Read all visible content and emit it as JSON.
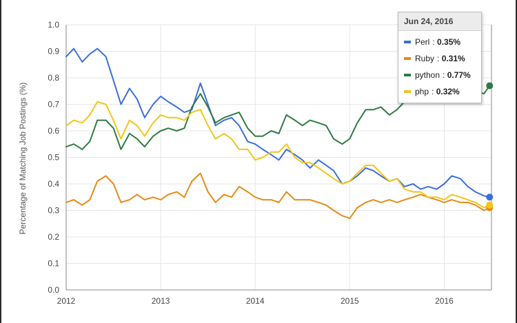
{
  "chart_data": {
    "type": "line",
    "title": "",
    "xlabel": "",
    "ylabel": "Percentage of Matching Job Postings (%)",
    "xlim": [
      2012.0,
      2016.5
    ],
    "ylim": [
      0.0,
      1.0
    ],
    "x_ticks": [
      2012,
      2013,
      2014,
      2015,
      2016
    ],
    "x_tick_labels": [
      "2012",
      "2013",
      "2014",
      "2015",
      "2016"
    ],
    "y_ticks": [
      0.0,
      0.1,
      0.2,
      0.3,
      0.4,
      0.5,
      0.6,
      0.7,
      0.8,
      0.9,
      1.0
    ],
    "y_tick_labels": [
      "0.0",
      "0.1",
      "0.2",
      "0.3",
      "0.4",
      "0.5",
      "0.6",
      "0.7",
      "0.8",
      "0.9",
      "1.0"
    ],
    "grid": true,
    "series": [
      {
        "name": "Perl",
        "color": "#3a6de0",
        "points": [
          [
            2012.0,
            0.88
          ],
          [
            2012.08,
            0.91
          ],
          [
            2012.17,
            0.86
          ],
          [
            2012.25,
            0.89
          ],
          [
            2012.33,
            0.91
          ],
          [
            2012.42,
            0.88
          ],
          [
            2012.5,
            0.79
          ],
          [
            2012.58,
            0.7
          ],
          [
            2012.67,
            0.76
          ],
          [
            2012.75,
            0.72
          ],
          [
            2012.83,
            0.65
          ],
          [
            2012.92,
            0.7
          ],
          [
            2013.0,
            0.73
          ],
          [
            2013.08,
            0.71
          ],
          [
            2013.17,
            0.69
          ],
          [
            2013.25,
            0.67
          ],
          [
            2013.33,
            0.68
          ],
          [
            2013.42,
            0.78
          ],
          [
            2013.5,
            0.7
          ],
          [
            2013.58,
            0.62
          ],
          [
            2013.67,
            0.64
          ],
          [
            2013.75,
            0.65
          ],
          [
            2013.83,
            0.62
          ],
          [
            2013.92,
            0.56
          ],
          [
            2014.0,
            0.55
          ],
          [
            2014.08,
            0.53
          ],
          [
            2014.17,
            0.51
          ],
          [
            2014.25,
            0.49
          ],
          [
            2014.33,
            0.53
          ],
          [
            2014.42,
            0.51
          ],
          [
            2014.5,
            0.49
          ],
          [
            2014.58,
            0.46
          ],
          [
            2014.67,
            0.49
          ],
          [
            2014.75,
            0.47
          ],
          [
            2014.83,
            0.45
          ],
          [
            2014.92,
            0.4
          ],
          [
            2015.0,
            0.41
          ],
          [
            2015.08,
            0.43
          ],
          [
            2015.17,
            0.46
          ],
          [
            2015.25,
            0.45
          ],
          [
            2015.33,
            0.43
          ],
          [
            2015.42,
            0.41
          ],
          [
            2015.5,
            0.42
          ],
          [
            2015.58,
            0.39
          ],
          [
            2015.67,
            0.4
          ],
          [
            2015.75,
            0.38
          ],
          [
            2015.83,
            0.39
          ],
          [
            2015.92,
            0.38
          ],
          [
            2016.0,
            0.4
          ],
          [
            2016.08,
            0.43
          ],
          [
            2016.17,
            0.42
          ],
          [
            2016.25,
            0.39
          ],
          [
            2016.33,
            0.37
          ],
          [
            2016.42,
            0.355
          ],
          [
            2016.48,
            0.35
          ]
        ]
      },
      {
        "name": "Ruby",
        "color": "#e88a14",
        "points": [
          [
            2012.0,
            0.33
          ],
          [
            2012.08,
            0.34
          ],
          [
            2012.17,
            0.32
          ],
          [
            2012.25,
            0.34
          ],
          [
            2012.33,
            0.41
          ],
          [
            2012.42,
            0.43
          ],
          [
            2012.5,
            0.4
          ],
          [
            2012.58,
            0.33
          ],
          [
            2012.67,
            0.34
          ],
          [
            2012.75,
            0.36
          ],
          [
            2012.83,
            0.34
          ],
          [
            2012.92,
            0.35
          ],
          [
            2013.0,
            0.34
          ],
          [
            2013.08,
            0.36
          ],
          [
            2013.17,
            0.37
          ],
          [
            2013.25,
            0.35
          ],
          [
            2013.33,
            0.41
          ],
          [
            2013.42,
            0.44
          ],
          [
            2013.5,
            0.37
          ],
          [
            2013.58,
            0.33
          ],
          [
            2013.67,
            0.36
          ],
          [
            2013.75,
            0.35
          ],
          [
            2013.83,
            0.39
          ],
          [
            2013.92,
            0.37
          ],
          [
            2014.0,
            0.35
          ],
          [
            2014.08,
            0.34
          ],
          [
            2014.17,
            0.34
          ],
          [
            2014.25,
            0.33
          ],
          [
            2014.33,
            0.37
          ],
          [
            2014.42,
            0.34
          ],
          [
            2014.5,
            0.34
          ],
          [
            2014.58,
            0.34
          ],
          [
            2014.67,
            0.33
          ],
          [
            2014.75,
            0.32
          ],
          [
            2014.83,
            0.3
          ],
          [
            2014.92,
            0.28
          ],
          [
            2015.0,
            0.27
          ],
          [
            2015.08,
            0.31
          ],
          [
            2015.17,
            0.33
          ],
          [
            2015.25,
            0.34
          ],
          [
            2015.33,
            0.33
          ],
          [
            2015.42,
            0.34
          ],
          [
            2015.5,
            0.33
          ],
          [
            2015.58,
            0.34
          ],
          [
            2015.67,
            0.35
          ],
          [
            2015.75,
            0.36
          ],
          [
            2015.83,
            0.35
          ],
          [
            2015.92,
            0.34
          ],
          [
            2016.0,
            0.33
          ],
          [
            2016.08,
            0.34
          ],
          [
            2016.17,
            0.33
          ],
          [
            2016.25,
            0.33
          ],
          [
            2016.33,
            0.32
          ],
          [
            2016.42,
            0.3
          ],
          [
            2016.48,
            0.31
          ]
        ]
      },
      {
        "name": "python",
        "color": "#2f7a44",
        "points": [
          [
            2012.0,
            0.54
          ],
          [
            2012.08,
            0.55
          ],
          [
            2012.17,
            0.53
          ],
          [
            2012.25,
            0.56
          ],
          [
            2012.33,
            0.64
          ],
          [
            2012.42,
            0.64
          ],
          [
            2012.5,
            0.61
          ],
          [
            2012.58,
            0.53
          ],
          [
            2012.67,
            0.59
          ],
          [
            2012.75,
            0.57
          ],
          [
            2012.83,
            0.54
          ],
          [
            2012.92,
            0.58
          ],
          [
            2013.0,
            0.6
          ],
          [
            2013.08,
            0.61
          ],
          [
            2013.17,
            0.6
          ],
          [
            2013.25,
            0.61
          ],
          [
            2013.33,
            0.69
          ],
          [
            2013.42,
            0.74
          ],
          [
            2013.5,
            0.69
          ],
          [
            2013.58,
            0.63
          ],
          [
            2013.67,
            0.65
          ],
          [
            2013.75,
            0.66
          ],
          [
            2013.83,
            0.67
          ],
          [
            2013.92,
            0.61
          ],
          [
            2014.0,
            0.58
          ],
          [
            2014.08,
            0.58
          ],
          [
            2014.17,
            0.6
          ],
          [
            2014.25,
            0.59
          ],
          [
            2014.33,
            0.66
          ],
          [
            2014.42,
            0.64
          ],
          [
            2014.5,
            0.62
          ],
          [
            2014.58,
            0.64
          ],
          [
            2014.67,
            0.63
          ],
          [
            2014.75,
            0.62
          ],
          [
            2014.83,
            0.57
          ],
          [
            2014.92,
            0.55
          ],
          [
            2015.0,
            0.57
          ],
          [
            2015.08,
            0.63
          ],
          [
            2015.17,
            0.68
          ],
          [
            2015.25,
            0.68
          ],
          [
            2015.33,
            0.69
          ],
          [
            2015.42,
            0.66
          ],
          [
            2015.5,
            0.68
          ],
          [
            2015.58,
            0.71
          ],
          [
            2015.67,
            0.76
          ],
          [
            2015.75,
            0.78
          ],
          [
            2015.83,
            0.8
          ],
          [
            2015.92,
            0.72
          ],
          [
            2016.0,
            0.78
          ],
          [
            2016.08,
            0.82
          ],
          [
            2016.17,
            0.8
          ],
          [
            2016.25,
            0.77
          ],
          [
            2016.33,
            0.75
          ],
          [
            2016.42,
            0.74
          ],
          [
            2016.48,
            0.77
          ]
        ]
      },
      {
        "name": "php",
        "color": "#f2c518",
        "points": [
          [
            2012.0,
            0.62
          ],
          [
            2012.08,
            0.64
          ],
          [
            2012.17,
            0.63
          ],
          [
            2012.25,
            0.66
          ],
          [
            2012.33,
            0.71
          ],
          [
            2012.42,
            0.7
          ],
          [
            2012.5,
            0.64
          ],
          [
            2012.58,
            0.57
          ],
          [
            2012.67,
            0.64
          ],
          [
            2012.75,
            0.62
          ],
          [
            2012.83,
            0.58
          ],
          [
            2012.92,
            0.63
          ],
          [
            2013.0,
            0.66
          ],
          [
            2013.08,
            0.65
          ],
          [
            2013.17,
            0.65
          ],
          [
            2013.25,
            0.64
          ],
          [
            2013.33,
            0.67
          ],
          [
            2013.42,
            0.68
          ],
          [
            2013.5,
            0.62
          ],
          [
            2013.58,
            0.57
          ],
          [
            2013.67,
            0.59
          ],
          [
            2013.75,
            0.57
          ],
          [
            2013.83,
            0.53
          ],
          [
            2013.92,
            0.53
          ],
          [
            2014.0,
            0.49
          ],
          [
            2014.08,
            0.5
          ],
          [
            2014.17,
            0.52
          ],
          [
            2014.25,
            0.52
          ],
          [
            2014.33,
            0.55
          ],
          [
            2014.42,
            0.5
          ],
          [
            2014.5,
            0.48
          ],
          [
            2014.58,
            0.48
          ],
          [
            2014.67,
            0.46
          ],
          [
            2014.75,
            0.44
          ],
          [
            2014.83,
            0.42
          ],
          [
            2014.92,
            0.4
          ],
          [
            2015.0,
            0.41
          ],
          [
            2015.08,
            0.44
          ],
          [
            2015.17,
            0.47
          ],
          [
            2015.25,
            0.47
          ],
          [
            2015.33,
            0.44
          ],
          [
            2015.42,
            0.41
          ],
          [
            2015.5,
            0.42
          ],
          [
            2015.58,
            0.38
          ],
          [
            2015.67,
            0.37
          ],
          [
            2015.75,
            0.37
          ],
          [
            2015.83,
            0.35
          ],
          [
            2015.92,
            0.35
          ],
          [
            2016.0,
            0.34
          ],
          [
            2016.08,
            0.36
          ],
          [
            2016.17,
            0.35
          ],
          [
            2016.25,
            0.34
          ],
          [
            2016.33,
            0.33
          ],
          [
            2016.42,
            0.31
          ],
          [
            2016.48,
            0.32
          ]
        ]
      }
    ]
  },
  "tooltip": {
    "date": "Jun 24, 2016",
    "rows": [
      {
        "name": "Perl",
        "value": "0.35%",
        "color": "#3a6de0"
      },
      {
        "name": "Ruby",
        "value": "0.31%",
        "color": "#e88a14"
      },
      {
        "name": "python",
        "value": "0.77%",
        "color": "#2f7a44"
      },
      {
        "name": "php",
        "value": "0.32%",
        "color": "#f2c518"
      }
    ]
  }
}
